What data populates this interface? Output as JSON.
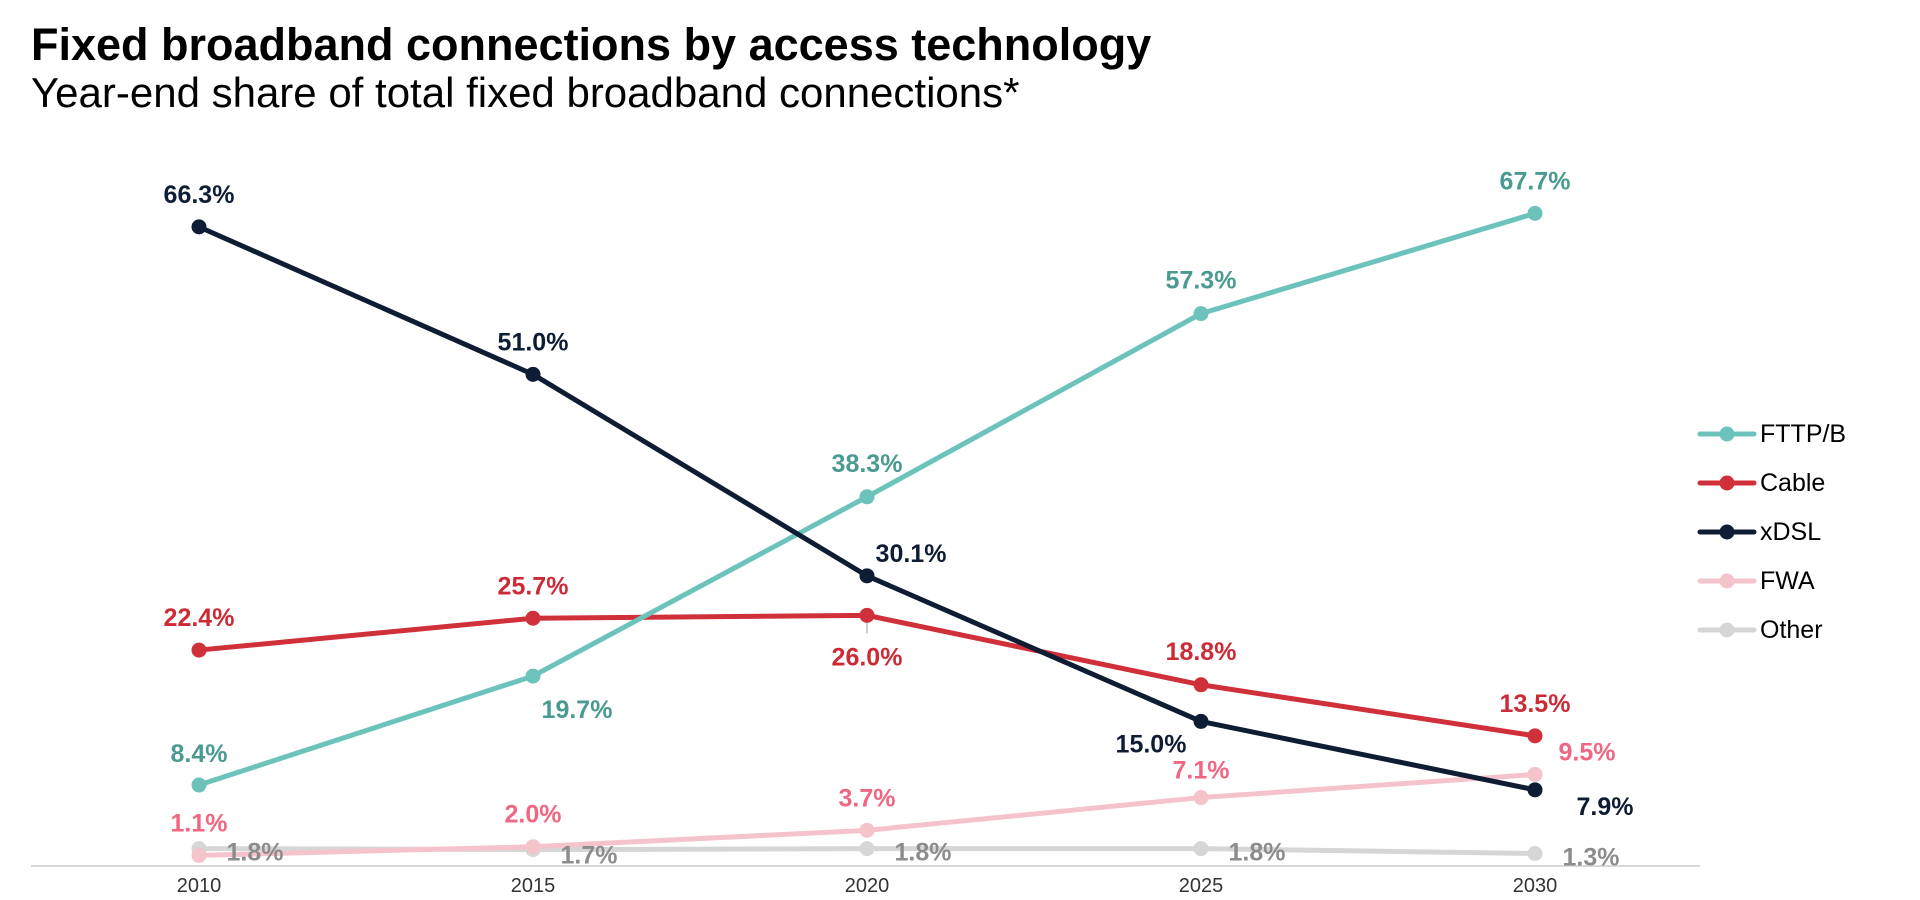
{
  "chart_data": {
    "type": "line",
    "title": "Fixed broadband connections by access technology",
    "subtitle": "Year-end share of total fixed broadband connections*",
    "x": [
      "2010",
      "2015",
      "2020",
      "2025",
      "2030"
    ],
    "ylim": [
      0,
      75
    ],
    "unit": "%",
    "grid": false,
    "legend_position": "right",
    "series": [
      {
        "name": "FTTP/B",
        "color": "#6cc3bb",
        "label_color": "#4a9a91",
        "values": [
          8.4,
          19.7,
          38.3,
          57.3,
          67.7
        ],
        "labels": [
          "8.4%",
          "19.7%",
          "38.3%",
          "57.3%",
          "67.7%"
        ]
      },
      {
        "name": "Cable",
        "color": "#d0303a",
        "label_color": "#cc2b36",
        "values": [
          22.4,
          25.7,
          26.0,
          18.8,
          13.5
        ],
        "labels": [
          "22.4%",
          "25.7%",
          "26.0%",
          "18.8%",
          "13.5%"
        ]
      },
      {
        "name": "xDSL",
        "color": "#0e1c34",
        "label_color": "#0e1c34",
        "values": [
          66.3,
          51.0,
          30.1,
          15.0,
          7.9
        ],
        "labels": [
          "66.3%",
          "51.0%",
          "30.1%",
          "15.0%",
          "7.9%"
        ]
      },
      {
        "name": "FWA",
        "color": "#f5c3cc",
        "label_color": "#ef6783",
        "values": [
          1.1,
          2.0,
          3.7,
          7.1,
          9.5
        ],
        "labels": [
          "1.1%",
          "2.0%",
          "3.7%",
          "7.1%",
          "9.5%"
        ]
      },
      {
        "name": "Other",
        "color": "#d6d6d6",
        "label_color": "#8c8c8c",
        "values": [
          1.8,
          1.7,
          1.8,
          1.8,
          1.3
        ],
        "labels": [
          "1.8%",
          "1.7%",
          "1.8%",
          "1.8%",
          "1.3%"
        ]
      }
    ]
  }
}
